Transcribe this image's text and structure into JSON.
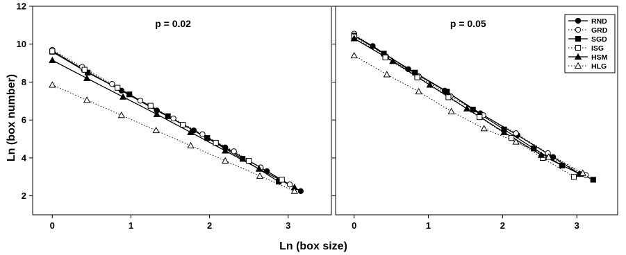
{
  "figure": {
    "ylabel": "Ln (box number)",
    "xlabel": "Ln (box size)"
  },
  "chart_data": [
    {
      "type": "line",
      "title": "p = 0.02",
      "xlabel": "Ln (box size)",
      "ylabel": "Ln (box number)",
      "xlim": [
        -0.25,
        3.55
      ],
      "ylim": [
        1,
        12
      ],
      "xticks": [
        "0",
        "1",
        "2",
        "3"
      ],
      "yticks": [
        "2",
        "4",
        "6",
        "8",
        "10",
        "12"
      ],
      "grid": false,
      "series": [
        {
          "name": "RND",
          "marker": "circle-filled",
          "line": "solid",
          "x": [
            0,
            0.4,
            0.88,
            1.33,
            1.8,
            2.2,
            2.73,
            3.16
          ],
          "y": [
            9.65,
            8.65,
            7.55,
            6.5,
            5.45,
            4.55,
            3.3,
            2.25
          ]
        },
        {
          "name": "GRD",
          "marker": "circle-open",
          "line": "dotted",
          "x": [
            0,
            0.38,
            0.76,
            1.12,
            1.54,
            1.91,
            2.31,
            2.65,
            3.02
          ],
          "y": [
            9.7,
            8.8,
            7.9,
            7.02,
            6.08,
            5.25,
            4.35,
            3.5,
            2.6
          ]
        },
        {
          "name": "SGD",
          "marker": "square-filled",
          "line": "solid",
          "x": [
            0,
            0.45,
            0.98,
            1.47,
            1.97,
            2.42,
            2.88
          ],
          "y": [
            9.6,
            8.5,
            7.35,
            6.2,
            5.05,
            3.95,
            2.75
          ]
        },
        {
          "name": "ISG",
          "marker": "square-open",
          "line": "dotted",
          "x": [
            0,
            0.41,
            0.83,
            1.25,
            1.66,
            2.08,
            2.5,
            2.92
          ],
          "y": [
            9.62,
            8.65,
            7.7,
            6.75,
            5.75,
            4.8,
            3.85,
            2.85
          ]
        },
        {
          "name": "HSM",
          "marker": "triangle-filled",
          "line": "solid",
          "x": [
            0,
            0.44,
            0.9,
            1.33,
            1.76,
            2.2,
            2.63,
            3.08
          ],
          "y": [
            9.15,
            8.2,
            7.22,
            6.3,
            5.35,
            4.38,
            3.42,
            2.45
          ]
        },
        {
          "name": "HLG",
          "marker": "triangle-open",
          "line": "dotted",
          "x": [
            0,
            0.44,
            0.88,
            1.32,
            1.76,
            2.2,
            2.64,
            3.08
          ],
          "y": [
            7.85,
            7.05,
            6.25,
            5.45,
            4.65,
            3.85,
            3.05,
            2.25
          ]
        }
      ]
    },
    {
      "type": "line",
      "title": "p = 0.05",
      "xlabel": "Ln (box size)",
      "ylabel": "Ln (box number)",
      "xlim": [
        -0.25,
        3.55
      ],
      "ylim": [
        1,
        12
      ],
      "xticks": [
        "0",
        "1",
        "2",
        "3"
      ],
      "yticks": [
        "2",
        "4",
        "6",
        "8",
        "10",
        "12"
      ],
      "show_ytick_labels": false,
      "legend_position": "top-right",
      "grid": false,
      "series": [
        {
          "name": "RND",
          "marker": "circle-filled",
          "line": "solid",
          "x": [
            0,
            0.25,
            0.73,
            1.22,
            1.7,
            2.2,
            2.68,
            3.04
          ],
          "y": [
            10.45,
            9.9,
            8.68,
            7.55,
            6.35,
            5.2,
            4.05,
            3.15
          ]
        },
        {
          "name": "GRD",
          "marker": "circle-open",
          "line": "dotted",
          "x": [
            0,
            0.43,
            0.87,
            1.3,
            1.74,
            2.18,
            2.61,
            3.12
          ],
          "y": [
            10.55,
            9.35,
            8.3,
            7.25,
            6.25,
            5.3,
            4.25,
            3.1
          ]
        },
        {
          "name": "SGD",
          "marker": "square-filled",
          "line": "solid",
          "x": [
            0,
            0.4,
            0.82,
            1.25,
            1.6,
            2.02,
            2.42,
            2.8,
            3.22
          ],
          "y": [
            10.45,
            9.5,
            8.5,
            7.5,
            6.55,
            5.5,
            4.5,
            3.6,
            2.85
          ]
        },
        {
          "name": "ISG",
          "marker": "square-open",
          "line": "dotted",
          "x": [
            0,
            0.42,
            0.85,
            1.27,
            1.69,
            2.12,
            2.54,
            2.96
          ],
          "y": [
            10.4,
            9.3,
            8.25,
            7.2,
            6.15,
            5.05,
            4.0,
            3.0
          ]
        },
        {
          "name": "HSM",
          "marker": "triangle-filled",
          "line": "solid",
          "x": [
            0,
            0.52,
            1.02,
            1.52,
            2.02,
            2.52,
            3.04
          ],
          "y": [
            10.3,
            9.1,
            7.85,
            6.6,
            5.35,
            4.15,
            3.15
          ]
        },
        {
          "name": "HLG",
          "marker": "triangle-open",
          "line": "dotted",
          "x": [
            0,
            0.44,
            0.87,
            1.31,
            1.75,
            2.18,
            2.62,
            3.08
          ],
          "y": [
            9.4,
            8.4,
            7.5,
            6.45,
            5.55,
            4.85,
            4.05,
            3.2
          ]
        }
      ]
    }
  ]
}
